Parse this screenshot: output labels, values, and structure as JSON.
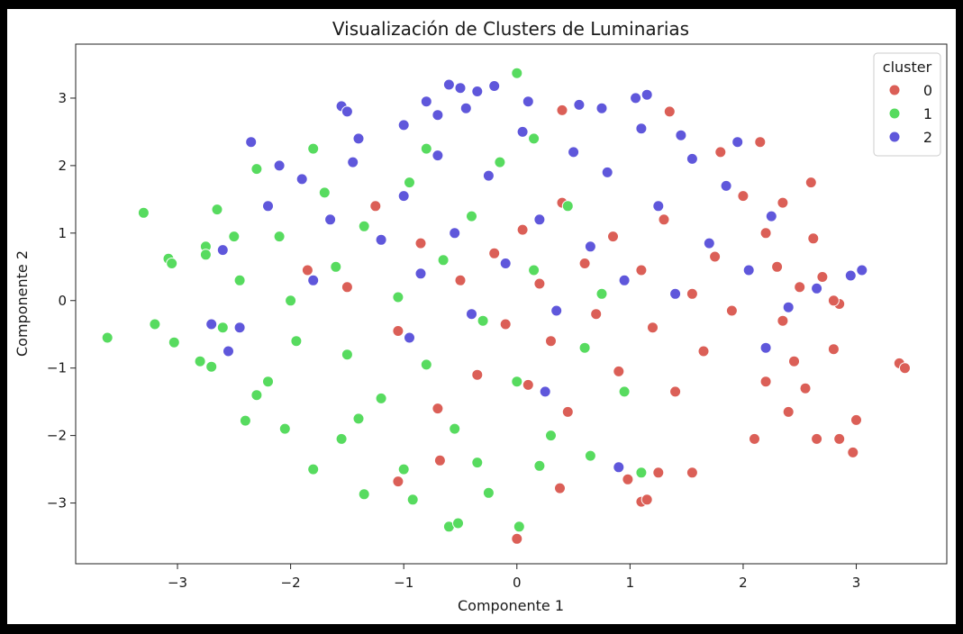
{
  "colors": {
    "background": "#000000",
    "figure": "#ffffff",
    "axes_edge": "#222222",
    "marker_edge": "#ffffff",
    "cluster_0": "#db5f57",
    "cluster_1": "#57db5f",
    "cluster_2": "#5f57db"
  },
  "chart_data": {
    "type": "scatter",
    "title": "Visualización de Clusters de Luminarias",
    "xlabel": "Componente 1",
    "ylabel": "Componente 2",
    "xlim": [
      -3.9,
      3.8
    ],
    "ylim": [
      -3.9,
      3.8
    ],
    "grid": false,
    "legend": {
      "title": "cluster",
      "position": "top-right",
      "entries": [
        "0",
        "1",
        "2"
      ]
    },
    "x_ticks": [
      {
        "value": -3,
        "label": "−3"
      },
      {
        "value": -2,
        "label": "−2"
      },
      {
        "value": -1,
        "label": "−1"
      },
      {
        "value": 0,
        "label": "0"
      },
      {
        "value": 1,
        "label": "1"
      },
      {
        "value": 2,
        "label": "2"
      },
      {
        "value": 3,
        "label": "3"
      }
    ],
    "y_ticks": [
      {
        "value": -3,
        "label": "−3"
      },
      {
        "value": -2,
        "label": "−2"
      },
      {
        "value": -1,
        "label": "−1"
      },
      {
        "value": 0,
        "label": "0"
      },
      {
        "value": 1,
        "label": "1"
      },
      {
        "value": 2,
        "label": "2"
      },
      {
        "value": 3,
        "label": "3"
      }
    ],
    "series": [
      {
        "name": "0",
        "color": "#db5f57",
        "points": [
          [
            3.38,
            -0.93
          ],
          [
            3.43,
            -1.0
          ],
          [
            3.0,
            -1.77
          ],
          [
            2.97,
            -2.25
          ],
          [
            2.85,
            -2.05
          ],
          [
            2.65,
            -2.05
          ],
          [
            2.8,
            -0.72
          ],
          [
            2.85,
            -0.05
          ],
          [
            2.8,
            0.0
          ],
          [
            2.7,
            0.35
          ],
          [
            2.62,
            0.92
          ],
          [
            2.6,
            1.75
          ],
          [
            2.15,
            2.35
          ],
          [
            1.8,
            2.2
          ],
          [
            1.35,
            2.8
          ],
          [
            0.4,
            2.82
          ],
          [
            0.0,
            -3.53
          ],
          [
            0.38,
            -2.78
          ],
          [
            -0.68,
            -2.37
          ],
          [
            -1.05,
            -2.68
          ],
          [
            1.1,
            -2.98
          ],
          [
            1.15,
            -2.95
          ],
          [
            0.98,
            -2.65
          ],
          [
            1.55,
            -2.55
          ],
          [
            1.25,
            -2.55
          ],
          [
            2.1,
            -2.05
          ],
          [
            2.4,
            -1.65
          ],
          [
            2.2,
            -1.2
          ],
          [
            2.55,
            -1.3
          ],
          [
            2.45,
            -0.9
          ],
          [
            2.35,
            -0.3
          ],
          [
            2.3,
            0.5
          ],
          [
            2.5,
            0.2
          ],
          [
            2.2,
            1.0
          ],
          [
            2.35,
            1.45
          ],
          [
            2.0,
            1.55
          ],
          [
            1.9,
            -0.15
          ],
          [
            1.75,
            0.65
          ],
          [
            1.65,
            -0.75
          ],
          [
            1.55,
            0.1
          ],
          [
            1.4,
            -1.35
          ],
          [
            1.3,
            1.2
          ],
          [
            1.2,
            -0.4
          ],
          [
            1.1,
            0.45
          ],
          [
            0.9,
            -1.05
          ],
          [
            0.85,
            0.95
          ],
          [
            0.7,
            -0.2
          ],
          [
            0.6,
            0.55
          ],
          [
            0.45,
            -1.65
          ],
          [
            0.4,
            1.45
          ],
          [
            0.3,
            -0.6
          ],
          [
            0.2,
            0.25
          ],
          [
            0.1,
            -1.25
          ],
          [
            0.05,
            1.05
          ],
          [
            -0.1,
            -0.35
          ],
          [
            -0.2,
            0.7
          ],
          [
            -0.35,
            -1.1
          ],
          [
            -0.5,
            0.3
          ],
          [
            -0.7,
            -1.6
          ],
          [
            -0.85,
            0.85
          ],
          [
            -1.05,
            -0.45
          ],
          [
            -1.25,
            1.4
          ],
          [
            -1.5,
            0.2
          ],
          [
            -1.85,
            0.45
          ]
        ]
      },
      {
        "name": "1",
        "color": "#57db5f",
        "points": [
          [
            0.0,
            3.37
          ],
          [
            -3.62,
            -0.55
          ],
          [
            -3.3,
            1.3
          ],
          [
            -3.2,
            -0.35
          ],
          [
            -3.08,
            0.62
          ],
          [
            -3.05,
            0.55
          ],
          [
            -3.03,
            -0.62
          ],
          [
            -2.75,
            0.8
          ],
          [
            -2.75,
            0.68
          ],
          [
            -2.65,
            1.35
          ],
          [
            -2.8,
            -0.9
          ],
          [
            -2.7,
            -0.98
          ],
          [
            -2.4,
            -1.78
          ],
          [
            -2.3,
            1.95
          ],
          [
            -2.05,
            -1.9
          ],
          [
            -1.8,
            -2.5
          ],
          [
            -1.35,
            -2.87
          ],
          [
            -1.0,
            -2.5
          ],
          [
            -0.92,
            -2.95
          ],
          [
            -0.6,
            -3.35
          ],
          [
            -0.52,
            -3.3
          ],
          [
            -0.25,
            -2.85
          ],
          [
            0.02,
            -3.35
          ],
          [
            0.2,
            -2.45
          ],
          [
            1.1,
            -2.55
          ],
          [
            0.65,
            -2.3
          ],
          [
            -1.55,
            -2.05
          ],
          [
            -2.2,
            -1.2
          ],
          [
            -2.6,
            -0.4
          ],
          [
            -2.45,
            0.3
          ],
          [
            -2.1,
            0.95
          ],
          [
            -1.8,
            2.25
          ],
          [
            -1.6,
            0.5
          ],
          [
            -1.5,
            -0.8
          ],
          [
            -1.35,
            1.1
          ],
          [
            -1.2,
            -1.45
          ],
          [
            -1.05,
            0.05
          ],
          [
            -0.95,
            1.75
          ],
          [
            -0.8,
            -0.95
          ],
          [
            -0.65,
            0.6
          ],
          [
            -0.55,
            -1.9
          ],
          [
            -0.4,
            1.25
          ],
          [
            -0.3,
            -0.3
          ],
          [
            -0.15,
            2.05
          ],
          [
            0.0,
            -1.2
          ],
          [
            0.15,
            0.45
          ],
          [
            0.3,
            -2.0
          ],
          [
            0.45,
            1.4
          ],
          [
            0.6,
            -0.7
          ],
          [
            0.75,
            0.1
          ],
          [
            0.95,
            -1.35
          ],
          [
            -1.95,
            -0.6
          ],
          [
            -2.3,
            -1.4
          ],
          [
            -1.7,
            1.6
          ],
          [
            -2.5,
            0.95
          ],
          [
            -1.4,
            -1.75
          ],
          [
            -0.35,
            -2.4
          ],
          [
            0.15,
            2.4
          ],
          [
            -0.8,
            2.25
          ],
          [
            -2.0,
            0.0
          ]
        ]
      },
      {
        "name": "2",
        "color": "#5f57db",
        "points": [
          [
            -0.5,
            3.15
          ],
          [
            -0.6,
            3.2
          ],
          [
            -0.35,
            3.1
          ],
          [
            -0.2,
            3.18
          ],
          [
            -1.55,
            2.88
          ],
          [
            -1.5,
            2.8
          ],
          [
            -0.8,
            2.95
          ],
          [
            -0.45,
            2.85
          ],
          [
            0.1,
            2.95
          ],
          [
            0.55,
            2.9
          ],
          [
            0.75,
            2.85
          ],
          [
            1.05,
            3.0
          ],
          [
            1.15,
            3.05
          ],
          [
            1.45,
            2.45
          ],
          [
            1.95,
            2.35
          ],
          [
            -2.35,
            2.35
          ],
          [
            -2.1,
            2.0
          ],
          [
            -2.6,
            0.75
          ],
          [
            -2.7,
            -0.35
          ],
          [
            -2.55,
            -0.75
          ],
          [
            -2.45,
            -0.4
          ],
          [
            3.05,
            0.45
          ],
          [
            2.95,
            0.37
          ],
          [
            2.65,
            0.18
          ],
          [
            2.2,
            -0.7
          ],
          [
            0.9,
            -2.47
          ],
          [
            -0.7,
            2.75
          ],
          [
            -1.4,
            2.4
          ],
          [
            -1.0,
            2.6
          ],
          [
            -1.9,
            1.8
          ],
          [
            -1.65,
            1.2
          ],
          [
            -1.45,
            2.05
          ],
          [
            -1.2,
            0.9
          ],
          [
            -1.0,
            1.55
          ],
          [
            -0.85,
            0.4
          ],
          [
            -0.7,
            2.15
          ],
          [
            -0.55,
            1.0
          ],
          [
            -0.4,
            -0.2
          ],
          [
            -0.25,
            1.85
          ],
          [
            -0.1,
            0.55
          ],
          [
            0.05,
            2.5
          ],
          [
            0.2,
            1.2
          ],
          [
            0.35,
            -0.15
          ],
          [
            0.5,
            2.2
          ],
          [
            0.65,
            0.8
          ],
          [
            0.8,
            1.9
          ],
          [
            0.95,
            0.3
          ],
          [
            1.1,
            2.55
          ],
          [
            1.25,
            1.4
          ],
          [
            1.4,
            0.1
          ],
          [
            1.55,
            2.1
          ],
          [
            1.7,
            0.85
          ],
          [
            1.85,
            1.7
          ],
          [
            2.05,
            0.45
          ],
          [
            2.25,
            1.25
          ],
          [
            2.4,
            -0.1
          ],
          [
            -1.8,
            0.3
          ],
          [
            -2.2,
            1.4
          ],
          [
            -0.95,
            -0.55
          ],
          [
            0.25,
            -1.35
          ]
        ]
      }
    ]
  }
}
